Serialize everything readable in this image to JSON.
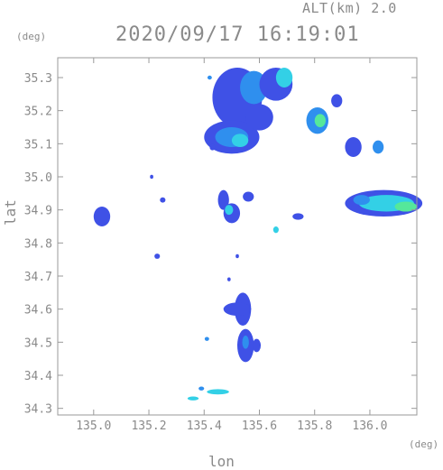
{
  "header": {
    "altitude_label": "ALT(km) 2.0",
    "timestamp": "2020/09/17 16:19:01"
  },
  "chart_data": {
    "type": "heatmap",
    "title": "2020/09/17 16:19:01",
    "xlabel": "lon",
    "ylabel": "lat",
    "x_unit": "(deg)",
    "y_unit": "(deg)",
    "xlim": [
      134.87,
      136.17
    ],
    "ylim": [
      34.28,
      35.36
    ],
    "x_ticks": [
      "135.0",
      "135.2",
      "135.4",
      "135.6",
      "135.8",
      "136.0"
    ],
    "y_ticks": [
      "34.3",
      "34.4",
      "34.5",
      "34.6",
      "34.7",
      "34.8",
      "34.9",
      "35.0",
      "35.1",
      "35.2",
      "35.3"
    ],
    "grid": false,
    "colors": {
      "level1": "#3f51e6",
      "level2": "#2f8fee",
      "level3": "#33d0e6",
      "level4": "#55e89a",
      "axis": "#9a9a9a"
    },
    "echo_regions": [
      {
        "lon": 135.52,
        "lat": 35.24,
        "rlon": 0.09,
        "rlat": 0.09,
        "level": 1
      },
      {
        "lon": 135.58,
        "lat": 35.27,
        "rlon": 0.05,
        "rlat": 0.05,
        "level": 2
      },
      {
        "lon": 135.5,
        "lat": 35.12,
        "rlon": 0.1,
        "rlat": 0.05,
        "level": 1
      },
      {
        "lon": 135.5,
        "lat": 35.12,
        "rlon": 0.06,
        "rlat": 0.03,
        "level": 2
      },
      {
        "lon": 135.53,
        "lat": 35.11,
        "rlon": 0.03,
        "rlat": 0.02,
        "level": 3
      },
      {
        "lon": 135.66,
        "lat": 35.28,
        "rlon": 0.06,
        "rlat": 0.05,
        "level": 1
      },
      {
        "lon": 135.69,
        "lat": 35.3,
        "rlon": 0.03,
        "rlat": 0.03,
        "level": 3
      },
      {
        "lon": 135.6,
        "lat": 35.18,
        "rlon": 0.05,
        "rlat": 0.04,
        "level": 1
      },
      {
        "lon": 135.81,
        "lat": 35.17,
        "rlon": 0.04,
        "rlat": 0.04,
        "level": 2
      },
      {
        "lon": 135.82,
        "lat": 35.17,
        "rlon": 0.02,
        "rlat": 0.02,
        "level": 4
      },
      {
        "lon": 135.88,
        "lat": 35.23,
        "rlon": 0.02,
        "rlat": 0.02,
        "level": 1
      },
      {
        "lon": 135.94,
        "lat": 35.09,
        "rlon": 0.03,
        "rlat": 0.03,
        "level": 1
      },
      {
        "lon": 136.03,
        "lat": 35.09,
        "rlon": 0.02,
        "rlat": 0.02,
        "level": 2
      },
      {
        "lon": 136.05,
        "lat": 34.92,
        "rlon": 0.14,
        "rlat": 0.04,
        "level": 1
      },
      {
        "lon": 136.06,
        "lat": 34.92,
        "rlon": 0.1,
        "rlat": 0.025,
        "level": 3
      },
      {
        "lon": 136.13,
        "lat": 34.91,
        "rlon": 0.04,
        "rlat": 0.015,
        "level": 4
      },
      {
        "lon": 135.97,
        "lat": 34.93,
        "rlon": 0.03,
        "rlat": 0.015,
        "level": 2
      },
      {
        "lon": 135.03,
        "lat": 34.88,
        "rlon": 0.03,
        "rlat": 0.03,
        "level": 1
      },
      {
        "lon": 135.47,
        "lat": 34.93,
        "rlon": 0.02,
        "rlat": 0.03,
        "level": 1
      },
      {
        "lon": 135.5,
        "lat": 34.89,
        "rlon": 0.03,
        "rlat": 0.03,
        "level": 1
      },
      {
        "lon": 135.49,
        "lat": 34.9,
        "rlon": 0.015,
        "rlat": 0.015,
        "level": 3
      },
      {
        "lon": 135.56,
        "lat": 34.94,
        "rlon": 0.02,
        "rlat": 0.015,
        "level": 1
      },
      {
        "lon": 135.74,
        "lat": 34.88,
        "rlon": 0.02,
        "rlat": 0.01,
        "level": 1
      },
      {
        "lon": 135.66,
        "lat": 34.84,
        "rlon": 0.01,
        "rlat": 0.01,
        "level": 3
      },
      {
        "lon": 135.54,
        "lat": 34.6,
        "rlon": 0.03,
        "rlat": 0.05,
        "level": 1
      },
      {
        "lon": 135.52,
        "lat": 34.6,
        "rlon": 0.05,
        "rlat": 0.02,
        "level": 1
      },
      {
        "lon": 135.55,
        "lat": 34.49,
        "rlon": 0.03,
        "rlat": 0.05,
        "level": 1
      },
      {
        "lon": 135.55,
        "lat": 34.5,
        "rlon": 0.012,
        "rlat": 0.02,
        "level": 2
      },
      {
        "lon": 135.59,
        "lat": 34.49,
        "rlon": 0.015,
        "rlat": 0.02,
        "level": 1
      },
      {
        "lon": 135.45,
        "lat": 34.35,
        "rlon": 0.04,
        "rlat": 0.008,
        "level": 3
      },
      {
        "lon": 135.36,
        "lat": 34.33,
        "rlon": 0.02,
        "rlat": 0.006,
        "level": 3
      },
      {
        "lon": 135.39,
        "lat": 34.36,
        "rlon": 0.01,
        "rlat": 0.006,
        "level": 2
      },
      {
        "lon": 135.41,
        "lat": 34.51,
        "rlon": 0.008,
        "rlat": 0.006,
        "level": 2
      },
      {
        "lon": 135.25,
        "lat": 34.93,
        "rlon": 0.01,
        "rlat": 0.008,
        "level": 1
      },
      {
        "lon": 135.23,
        "lat": 34.76,
        "rlon": 0.01,
        "rlat": 0.008,
        "level": 1
      },
      {
        "lon": 135.21,
        "lat": 35.0,
        "rlon": 0.006,
        "rlat": 0.006,
        "level": 1
      },
      {
        "lon": 135.43,
        "lat": 35.09,
        "rlon": 0.01,
        "rlat": 0.01,
        "level": 1
      },
      {
        "lon": 135.42,
        "lat": 35.3,
        "rlon": 0.008,
        "rlat": 0.006,
        "level": 2
      },
      {
        "lon": 135.52,
        "lat": 34.76,
        "rlon": 0.006,
        "rlat": 0.006,
        "level": 1
      },
      {
        "lon": 135.49,
        "lat": 34.69,
        "rlon": 0.006,
        "rlat": 0.006,
        "level": 1
      }
    ]
  }
}
